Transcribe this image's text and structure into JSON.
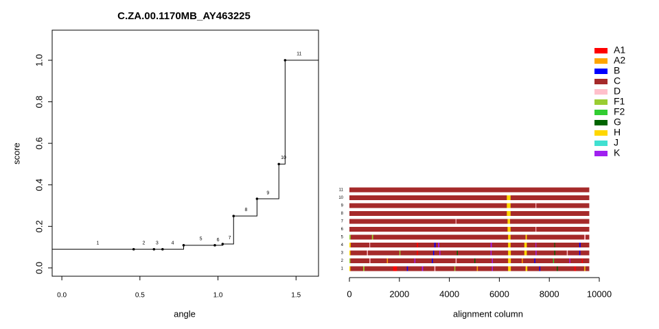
{
  "chart_data": [
    {
      "type": "step",
      "title": "C.ZA.00.1170MB_AY463225",
      "xlabel": "angle",
      "ylabel": "score",
      "x": [
        0.46,
        0.59,
        0.645,
        0.78,
        0.98,
        1.03,
        1.1,
        1.25,
        1.39,
        1.43
      ],
      "values": [
        0.09,
        0.09,
        0.09,
        0.109,
        0.109,
        0.115,
        0.25,
        0.333,
        0.5,
        1.0
      ],
      "color": "#000000",
      "xlim": [
        -0.062,
        1.644
      ],
      "ylim": [
        -0.04,
        1.145
      ],
      "xticks": [
        {
          "value": 0,
          "label": "0.0"
        },
        0.5,
        {
          "value": 1,
          "label": "1.0"
        },
        1.5
      ],
      "yticks": [
        {
          "value": 0,
          "label": "0.0"
        },
        0.2,
        0.4,
        0.6,
        0.8,
        {
          "value": 1,
          "label": "1.0"
        }
      ],
      "annotations": [
        {
          "text": "1",
          "x": 0.23,
          "y": 0.12
        },
        {
          "text": "2",
          "x": 0.525,
          "y": 0.12
        },
        {
          "text": "3",
          "x": 0.61,
          "y": 0.12
        },
        {
          "text": "4",
          "x": 0.71,
          "y": 0.12
        },
        {
          "text": "5",
          "x": 0.89,
          "y": 0.14
        },
        {
          "text": "6",
          "x": 1.0,
          "y": 0.135
        },
        {
          "text": "7",
          "x": 1.075,
          "y": 0.145
        },
        {
          "text": "8",
          "x": 1.18,
          "y": 0.28
        },
        {
          "text": "9",
          "x": 1.32,
          "y": 0.36
        },
        {
          "text": "10",
          "x": 1.42,
          "y": 0.53
        },
        {
          "text": "11",
          "x": 1.52,
          "y": 1.03
        }
      ]
    },
    {
      "type": "alignment",
      "xlabel": "alignment column",
      "base_subtype": "C",
      "xlim": [
        0,
        10000
      ],
      "xticks": [
        0,
        2000,
        4000,
        6000,
        8000,
        10000
      ],
      "rows": [
        {
          "label": "1",
          "length": 9600,
          "segments": [
            [
              0,
              40,
              "H"
            ],
            [
              550,
              600,
              "F1"
            ],
            [
              1750,
              1900,
              "A1"
            ],
            [
              2300,
              2340,
              "B"
            ],
            [
              2900,
              2950,
              "K"
            ],
            [
              3400,
              3440,
              "D"
            ],
            [
              4200,
              4240,
              "F1"
            ],
            [
              5100,
              5140,
              "A2"
            ],
            [
              5700,
              5740,
              "K"
            ],
            [
              6350,
              6460,
              "H"
            ],
            [
              7050,
              7120,
              "H"
            ],
            [
              7600,
              7640,
              "B"
            ],
            [
              8300,
              8340,
              "G"
            ],
            [
              9000,
              9060,
              "A1"
            ],
            [
              9400,
              9440,
              "H"
            ]
          ]
        },
        {
          "label": "2",
          "length": 9600,
          "segments": [
            [
              0,
              40,
              "F1"
            ],
            [
              800,
              840,
              "D"
            ],
            [
              1500,
              1540,
              "A2"
            ],
            [
              2600,
              2640,
              "K"
            ],
            [
              3300,
              3340,
              "B"
            ],
            [
              4250,
              4290,
              "D"
            ],
            [
              5000,
              5040,
              "G"
            ],
            [
              5700,
              5740,
              "K"
            ],
            [
              6350,
              6460,
              "H"
            ],
            [
              6900,
              6940,
              "A2"
            ],
            [
              7400,
              7440,
              "B"
            ],
            [
              8150,
              8190,
              "F2"
            ],
            [
              8800,
              8840,
              "K"
            ],
            [
              9300,
              9340,
              "A1"
            ]
          ]
        },
        {
          "label": "3",
          "length": 9600,
          "segments": [
            [
              0,
              40,
              "H"
            ],
            [
              700,
              740,
              "D"
            ],
            [
              2000,
              2040,
              "F1"
            ],
            [
              2700,
              2740,
              "A1"
            ],
            [
              3350,
              3390,
              "B"
            ],
            [
              3600,
              3640,
              "K"
            ],
            [
              4300,
              4340,
              "G"
            ],
            [
              5650,
              5690,
              "K"
            ],
            [
              6350,
              6460,
              "H"
            ],
            [
              7000,
              7100,
              "H"
            ],
            [
              7450,
              7490,
              "K"
            ],
            [
              8200,
              8240,
              "G"
            ],
            [
              8700,
              8740,
              "D"
            ],
            [
              9200,
              9240,
              "B"
            ]
          ]
        },
        {
          "label": "4",
          "length": 9600,
          "segments": [
            [
              0,
              50,
              "H"
            ],
            [
              800,
              830,
              "D"
            ],
            [
              2700,
              2750,
              "A1"
            ],
            [
              3400,
              3450,
              "B"
            ],
            [
              3550,
              3600,
              "K"
            ],
            [
              5650,
              5700,
              "K"
            ],
            [
              6350,
              6450,
              "H"
            ],
            [
              7000,
              7100,
              "H"
            ],
            [
              7450,
              7480,
              "K"
            ],
            [
              8200,
              8230,
              "G"
            ],
            [
              9200,
              9250,
              "B"
            ]
          ]
        },
        {
          "label": "5",
          "length": 9600,
          "segments": [
            [
              0,
              50,
              "F1"
            ],
            [
              900,
              950,
              "F1"
            ],
            [
              6350,
              6450,
              "H"
            ],
            [
              7050,
              7100,
              "H"
            ],
            [
              9400,
              9450,
              "D"
            ]
          ]
        },
        {
          "label": "6",
          "length": 9600,
          "segments": [
            [
              6330,
              6450,
              "H"
            ],
            [
              7450,
              7480,
              "D"
            ]
          ]
        },
        {
          "label": "7",
          "length": 9600,
          "segments": [
            [
              4250,
              4280,
              "D"
            ],
            [
              6330,
              6430,
              "H"
            ]
          ]
        },
        {
          "label": "8",
          "length": 9600,
          "segments": [
            [
              6300,
              6450,
              "H"
            ]
          ]
        },
        {
          "label": "9",
          "length": 9600,
          "segments": [
            [
              6300,
              6450,
              "H"
            ],
            [
              7450,
              7480,
              "D"
            ]
          ]
        },
        {
          "label": "10",
          "length": 9600,
          "segments": [
            [
              6300,
              6450,
              "H"
            ]
          ]
        },
        {
          "label": "11",
          "length": 9600,
          "segments": []
        }
      ],
      "legend": [
        {
          "name": "A1",
          "color": "#ff0000"
        },
        {
          "name": "A2",
          "color": "#ffa500"
        },
        {
          "name": "B",
          "color": "#0000ff"
        },
        {
          "name": "C",
          "color": "#a52a2a"
        },
        {
          "name": "D",
          "color": "#ffc0cb"
        },
        {
          "name": "F1",
          "color": "#9acd32"
        },
        {
          "name": "F2",
          "color": "#32cd32"
        },
        {
          "name": "G",
          "color": "#006400"
        },
        {
          "name": "H",
          "color": "#ffd700"
        },
        {
          "name": "J",
          "color": "#40e0d0"
        },
        {
          "name": "K",
          "color": "#a020f0"
        }
      ]
    }
  ]
}
